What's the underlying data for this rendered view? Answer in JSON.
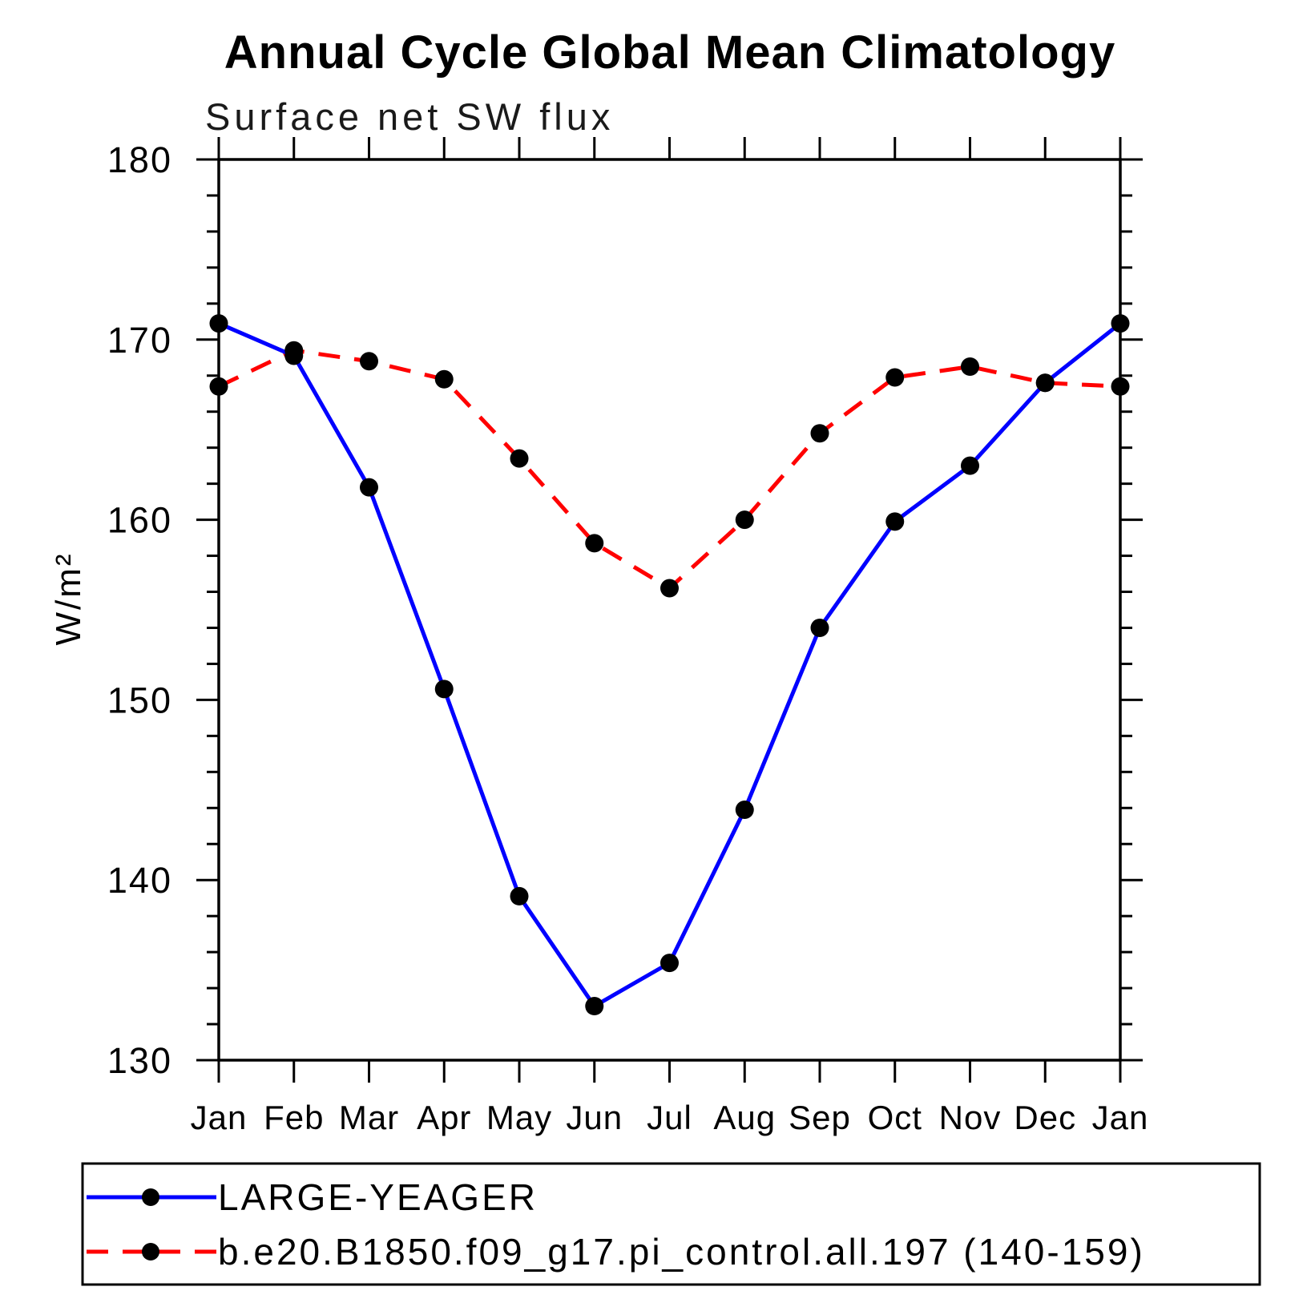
{
  "title": "Annual Cycle Global Mean Climatology",
  "subtitle": "Surface net SW flux",
  "y_axis": {
    "label": "W/m²",
    "min": 130,
    "max": 180,
    "major_step": 10,
    "minor_step": 2,
    "tick_labels": [
      "180",
      "170",
      "160",
      "150",
      "140",
      "130"
    ]
  },
  "x_axis": {
    "tick_labels": [
      "Jan",
      "Feb",
      "Mar",
      "Apr",
      "May",
      "Jun",
      "Jul",
      "Aug",
      "Sep",
      "Oct",
      "Nov",
      "Dec",
      "Jan"
    ]
  },
  "colors": {
    "background": "#ffffff",
    "frame": "#000000",
    "marker": "#000000",
    "series_large_yeager": "#0000ff",
    "series_model": "#ff0000"
  },
  "chart_data": {
    "type": "line",
    "categories": [
      "Jan",
      "Feb",
      "Mar",
      "Apr",
      "May",
      "Jun",
      "Jul",
      "Aug",
      "Sep",
      "Oct",
      "Nov",
      "Dec",
      "Jan"
    ],
    "title": "Annual Cycle Global Mean Climatology",
    "subtitle": "Surface net SW flux",
    "xlabel": "",
    "ylabel": "W/m²",
    "ylim": [
      130,
      180
    ],
    "grid": false,
    "legend_position": "bottom",
    "marker": "filled-circle",
    "series": [
      {
        "name": "LARGE-YEAGER",
        "color": "#0000ff",
        "style": "solid",
        "values": [
          170.9,
          169.1,
          161.8,
          150.6,
          139.1,
          133.0,
          135.4,
          143.9,
          154.0,
          159.9,
          163.0,
          167.6,
          170.9
        ]
      },
      {
        "name": "b.e20.B1850.f09_g17.pi_control.all.197 (140-159)",
        "color": "#ff0000",
        "style": "dashed",
        "values": [
          167.4,
          169.4,
          168.8,
          167.8,
          163.4,
          158.7,
          156.2,
          160.0,
          164.8,
          167.9,
          168.5,
          167.6,
          167.4
        ]
      }
    ]
  }
}
